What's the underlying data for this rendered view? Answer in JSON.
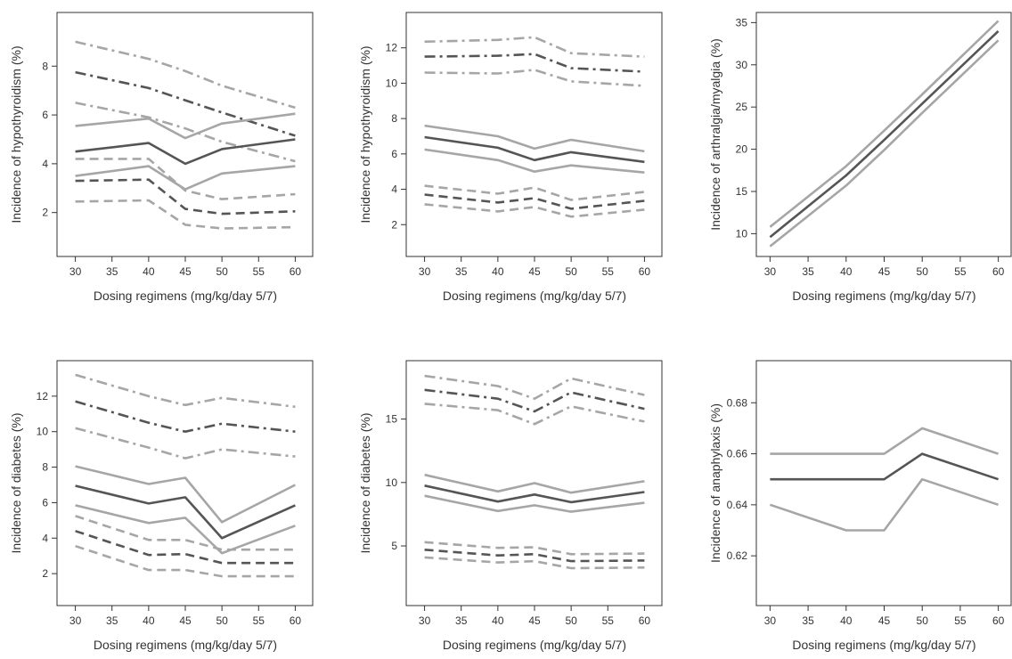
{
  "figure": {
    "colors": {
      "central": "#555555",
      "bound": "#a6a6a6",
      "axis": "#333333",
      "background": "#ffffff"
    },
    "line_styles": {
      "solid": "solid",
      "dashed": "dashed",
      "dashdot": "dash-dot"
    }
  },
  "chart_data": [
    {
      "type": "line",
      "xlabel": "Dosing regimens (mg/kg/day 5/7)",
      "ylabel": "Incidence of hypothyroidism (%)",
      "x": [
        30,
        40,
        45,
        50,
        60
      ],
      "xticks": [
        30,
        35,
        40,
        45,
        50,
        55,
        60
      ],
      "yticks": [
        2,
        4,
        6,
        8
      ],
      "xlim": [
        27.5,
        62.5
      ],
      "ylim": [
        0.2,
        10.2
      ],
      "series": [
        {
          "style": "dashdot",
          "role": "bound",
          "values": [
            9.0,
            8.3,
            7.8,
            7.2,
            6.3
          ]
        },
        {
          "style": "dashdot",
          "role": "central",
          "values": [
            7.75,
            7.1,
            6.6,
            6.1,
            5.15
          ]
        },
        {
          "style": "dashdot",
          "role": "bound",
          "values": [
            6.5,
            5.9,
            5.45,
            4.9,
            4.1
          ]
        },
        {
          "style": "solid",
          "role": "bound",
          "values": [
            5.55,
            5.85,
            5.05,
            5.65,
            6.05
          ]
        },
        {
          "style": "solid",
          "role": "central",
          "values": [
            4.5,
            4.85,
            4.0,
            4.6,
            5.0
          ]
        },
        {
          "style": "solid",
          "role": "bound",
          "values": [
            3.5,
            3.9,
            2.95,
            3.6,
            3.9
          ]
        },
        {
          "style": "dashed",
          "role": "bound",
          "values": [
            4.2,
            4.2,
            2.9,
            2.55,
            2.75
          ]
        },
        {
          "style": "dashed",
          "role": "central",
          "values": [
            3.3,
            3.35,
            2.15,
            1.95,
            2.05
          ]
        },
        {
          "style": "dashed",
          "role": "bound",
          "values": [
            2.45,
            2.5,
            1.5,
            1.35,
            1.4
          ]
        }
      ]
    },
    {
      "type": "line",
      "xlabel": "Dosing regimens (mg/kg/day 5/7)",
      "ylabel": "Incidence of hypothyroidism (%)",
      "x": [
        30,
        40,
        45,
        50,
        60
      ],
      "xticks": [
        30,
        35,
        40,
        45,
        50,
        55,
        60
      ],
      "yticks": [
        2,
        4,
        6,
        8,
        10,
        12
      ],
      "xlim": [
        27.5,
        62.5
      ],
      "ylim": [
        0.2,
        14.0
      ],
      "series": [
        {
          "style": "dashdot",
          "role": "bound",
          "values": [
            12.35,
            12.45,
            12.6,
            11.7,
            11.5
          ]
        },
        {
          "style": "dashdot",
          "role": "central",
          "values": [
            11.5,
            11.55,
            11.65,
            10.85,
            10.65
          ]
        },
        {
          "style": "dashdot",
          "role": "bound",
          "values": [
            10.6,
            10.55,
            10.75,
            10.1,
            9.85
          ]
        },
        {
          "style": "solid",
          "role": "bound",
          "values": [
            7.6,
            7.0,
            6.3,
            6.8,
            6.15
          ]
        },
        {
          "style": "solid",
          "role": "central",
          "values": [
            6.95,
            6.35,
            5.65,
            6.1,
            5.55
          ]
        },
        {
          "style": "solid",
          "role": "bound",
          "values": [
            6.25,
            5.65,
            5.0,
            5.35,
            4.95
          ]
        },
        {
          "style": "dashed",
          "role": "bound",
          "values": [
            4.2,
            3.75,
            4.1,
            3.4,
            3.85
          ]
        },
        {
          "style": "dashed",
          "role": "central",
          "values": [
            3.7,
            3.25,
            3.5,
            2.9,
            3.35
          ]
        },
        {
          "style": "dashed",
          "role": "bound",
          "values": [
            3.15,
            2.75,
            3.0,
            2.45,
            2.85
          ]
        }
      ]
    },
    {
      "type": "line",
      "xlabel": "Dosing regimens (mg/kg/day 5/7)",
      "ylabel": "Incidence of arthralgia/myalgia (%)",
      "x": [
        30,
        40,
        45,
        50,
        60
      ],
      "xticks": [
        30,
        35,
        40,
        45,
        50,
        55,
        60
      ],
      "yticks": [
        10,
        15,
        20,
        25,
        30,
        35
      ],
      "xlim": [
        28.2,
        61.8
      ],
      "ylim": [
        7.3,
        36.2
      ],
      "series": [
        {
          "style": "solid",
          "role": "bound",
          "values": [
            10.8,
            18.0,
            22.2,
            26.5,
            35.2
          ]
        },
        {
          "style": "solid",
          "role": "central",
          "values": [
            9.6,
            16.9,
            21.1,
            25.4,
            34.0
          ]
        },
        {
          "style": "solid",
          "role": "bound",
          "values": [
            8.5,
            15.7,
            19.9,
            24.3,
            32.9
          ]
        }
      ]
    },
    {
      "type": "line",
      "xlabel": "Dosing regimens (mg/kg/day 5/7)",
      "ylabel": "Incidence of diabetes (%)",
      "x": [
        30,
        40,
        45,
        50,
        60
      ],
      "xticks": [
        30,
        35,
        40,
        45,
        50,
        55,
        60
      ],
      "yticks": [
        2,
        4,
        6,
        8,
        10,
        12
      ],
      "xlim": [
        27.5,
        62.5
      ],
      "ylim": [
        0.2,
        14.0
      ],
      "series": [
        {
          "style": "dashdot",
          "role": "bound",
          "values": [
            13.2,
            12.0,
            11.5,
            11.9,
            11.4
          ]
        },
        {
          "style": "dashdot",
          "role": "central",
          "values": [
            11.7,
            10.5,
            10.0,
            10.45,
            10.0
          ]
        },
        {
          "style": "dashdot",
          "role": "bound",
          "values": [
            10.2,
            9.1,
            8.5,
            9.0,
            8.6
          ]
        },
        {
          "style": "solid",
          "role": "bound",
          "values": [
            8.05,
            7.05,
            7.4,
            4.9,
            7.0
          ]
        },
        {
          "style": "solid",
          "role": "central",
          "values": [
            6.95,
            5.95,
            6.3,
            4.0,
            5.85
          ]
        },
        {
          "style": "solid",
          "role": "bound",
          "values": [
            5.85,
            4.85,
            5.15,
            3.15,
            4.7
          ]
        },
        {
          "style": "dashed",
          "role": "bound",
          "values": [
            5.25,
            3.9,
            3.9,
            3.35,
            3.35
          ]
        },
        {
          "style": "dashed",
          "role": "central",
          "values": [
            4.4,
            3.05,
            3.1,
            2.6,
            2.6
          ]
        },
        {
          "style": "dashed",
          "role": "bound",
          "values": [
            3.55,
            2.2,
            2.2,
            1.85,
            1.85
          ]
        }
      ]
    },
    {
      "type": "line",
      "xlabel": "Dosing regimens (mg/kg/day 5/7)",
      "ylabel": "Incidence of diabetes (%)",
      "x": [
        30,
        40,
        45,
        50,
        60
      ],
      "xticks": [
        30,
        35,
        40,
        45,
        50,
        55,
        60
      ],
      "yticks": [
        5,
        10,
        15
      ],
      "xlim": [
        27.5,
        62.5
      ],
      "ylim": [
        0.3,
        19.6
      ],
      "series": [
        {
          "style": "dashdot",
          "role": "bound",
          "values": [
            18.4,
            17.6,
            16.6,
            18.2,
            16.9
          ]
        },
        {
          "style": "dashdot",
          "role": "central",
          "values": [
            17.3,
            16.6,
            15.6,
            17.1,
            15.8
          ]
        },
        {
          "style": "dashdot",
          "role": "bound",
          "values": [
            16.2,
            15.7,
            14.6,
            16.0,
            14.8
          ]
        },
        {
          "style": "solid",
          "role": "bound",
          "values": [
            10.6,
            9.3,
            9.95,
            9.2,
            10.1
          ]
        },
        {
          "style": "solid",
          "role": "central",
          "values": [
            9.75,
            8.5,
            9.05,
            8.45,
            9.25
          ]
        },
        {
          "style": "solid",
          "role": "bound",
          "values": [
            8.95,
            7.75,
            8.2,
            7.7,
            8.4
          ]
        },
        {
          "style": "dashed",
          "role": "bound",
          "values": [
            5.3,
            4.85,
            4.9,
            4.35,
            4.4
          ]
        },
        {
          "style": "dashed",
          "role": "central",
          "values": [
            4.7,
            4.25,
            4.35,
            3.8,
            3.85
          ]
        },
        {
          "style": "dashed",
          "role": "bound",
          "values": [
            4.1,
            3.7,
            3.8,
            3.25,
            3.3
          ]
        }
      ]
    },
    {
      "type": "line",
      "xlabel": "Dosing regimens (mg/kg/day 5/7)",
      "ylabel": "Incidence of anaphylaxis (%)",
      "x": [
        30,
        40,
        45,
        50,
        60
      ],
      "xticks": [
        30,
        35,
        40,
        45,
        50,
        55,
        60
      ],
      "yticks": [
        "0.62",
        "0.64",
        "0.66",
        "0.68"
      ],
      "xlim": [
        28.2,
        61.8
      ],
      "ylim": [
        0.6005,
        0.6965
      ],
      "series": [
        {
          "style": "solid",
          "role": "bound",
          "values": [
            0.66,
            0.66,
            0.66,
            0.67,
            0.66
          ]
        },
        {
          "style": "solid",
          "role": "central",
          "values": [
            0.65,
            0.65,
            0.65,
            0.66,
            0.65
          ]
        },
        {
          "style": "solid",
          "role": "bound",
          "values": [
            0.64,
            0.63,
            0.63,
            0.65,
            0.64
          ]
        }
      ]
    }
  ]
}
